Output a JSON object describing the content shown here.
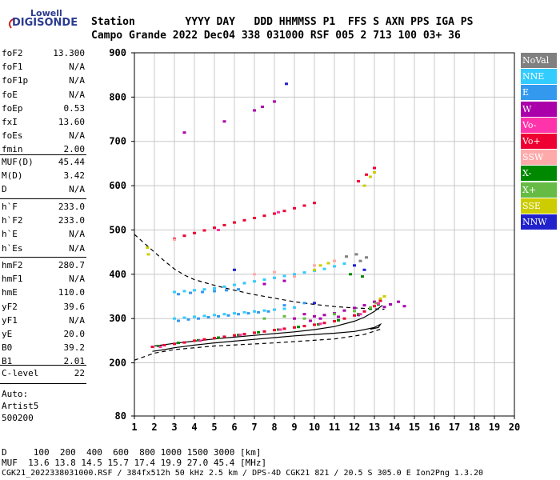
{
  "logo": {
    "line1": "Lowell",
    "line2": "DIGISONDE"
  },
  "header": {
    "row1": "Station        YYYY DAY   DDD HHMMSS P1  FFS S AXN PPS IGA PS",
    "row2": "Campo Grande 2022 Dec04 338 031000 RSF 005 2 713 100 03+ 36"
  },
  "params": {
    "group1": [
      {
        "label": "foF2",
        "value": "13.300"
      },
      {
        "label": "foF1",
        "value": "N/A"
      },
      {
        "label": "foF1p",
        "value": "N/A"
      },
      {
        "label": "foE",
        "value": "N/A"
      },
      {
        "label": "foEp",
        "value": "0.53"
      },
      {
        "label": "fxI",
        "value": "13.60"
      },
      {
        "label": "foEs",
        "value": "N/A"
      },
      {
        "label": "fmin",
        "value": "2.00"
      }
    ],
    "group2": [
      {
        "label": "MUF(D)",
        "value": "45.44"
      },
      {
        "label": "M(D)",
        "value": "3.42"
      },
      {
        "label": "D",
        "value": "N/A"
      }
    ],
    "group3": [
      {
        "label": "h`F",
        "value": "233.0"
      },
      {
        "label": "h`F2",
        "value": "233.0"
      },
      {
        "label": "h`E",
        "value": "N/A"
      },
      {
        "label": "h`Es",
        "value": "N/A"
      }
    ],
    "group4": [
      {
        "label": "hmF2",
        "value": "280.7"
      },
      {
        "label": "hmF1",
        "value": "N/A"
      },
      {
        "label": "hmE",
        "value": "110.0"
      },
      {
        "label": "yF2",
        "value": "39.6"
      },
      {
        "label": "yF1",
        "value": "N/A"
      },
      {
        "label": "yE",
        "value": "20.0"
      },
      {
        "label": "B0",
        "value": "39.2"
      },
      {
        "label": "B1",
        "value": "2.01"
      }
    ],
    "clevel": {
      "label": "C-level",
      "value": "22"
    },
    "auto": [
      "Auto:",
      "Artist5",
      "500200"
    ]
  },
  "legend": [
    {
      "label": "NoVal",
      "color": "#808080"
    },
    {
      "label": "NNE",
      "color": "#33ccff"
    },
    {
      "label": "E",
      "color": "#3399ee"
    },
    {
      "label": "W",
      "color": "#aa00aa"
    },
    {
      "label": "Vo-",
      "color": "#ff33aa"
    },
    {
      "label": "Vo+",
      "color": "#ee0033"
    },
    {
      "label": "SSW",
      "color": "#ffaaaa"
    },
    {
      "label": "X-",
      "color": "#008800"
    },
    {
      "label": "X+",
      "color": "#66bb44"
    },
    {
      "label": "SSE",
      "color": "#cccc00"
    },
    {
      "label": "NNW",
      "color": "#2222cc"
    }
  ],
  "footer": {
    "row1": "D     100  200  400  600  800 1000 1500 3000 [km]",
    "row2": "MUF  13.6 13.8 14.5 15.7 17.4 19.9 27.0 45.4 [MHz]",
    "row3": "CGK21_2022338031000.RSF / 384fx512h 50 kHz 2.5 km / DPS-4D CGK21 821 / 20.5 S 305.0 E Ion2Png 1.3.20"
  },
  "chart_data": {
    "type": "scatter",
    "title": "",
    "xlabel": "",
    "ylabel": "",
    "xlim": [
      1,
      20
    ],
    "ylim": [
      80,
      900
    ],
    "x_ticks": [
      "1",
      "2",
      "3",
      "4",
      "5",
      "6",
      "7",
      "8",
      "9",
      "10",
      "11",
      "12",
      "13",
      "14",
      "15",
      "16",
      "17",
      "18",
      "19",
      "20"
    ],
    "y_ticks": [
      {
        "value": 80,
        "label": "80"
      },
      {
        "value": 200,
        "label": "200"
      },
      {
        "value": 300,
        "label": "300"
      },
      {
        "value": 400,
        "label": "400"
      },
      {
        "value": 500,
        "label": "500"
      },
      {
        "value": 600,
        "label": "600"
      },
      {
        "value": 700,
        "label": "700"
      },
      {
        "value": 800,
        "label": "800"
      },
      {
        "value": 900,
        "label": "900"
      }
    ],
    "grid": true,
    "legend_position": "right",
    "series": [
      {
        "name": "Vo+",
        "color": "#ee0033",
        "points": [
          [
            1.9,
            236
          ],
          [
            2.5,
            240
          ],
          [
            3.0,
            243
          ],
          [
            3.5,
            246
          ],
          [
            4.0,
            250
          ],
          [
            4.5,
            253
          ],
          [
            5.0,
            256
          ],
          [
            5.5,
            259
          ],
          [
            6.0,
            262
          ],
          [
            6.5,
            265
          ],
          [
            7.0,
            268
          ],
          [
            7.5,
            271
          ],
          [
            8.0,
            274
          ],
          [
            8.5,
            277
          ],
          [
            9.0,
            280
          ],
          [
            9.5,
            283
          ],
          [
            10.0,
            286
          ],
          [
            10.5,
            290
          ],
          [
            11.0,
            294
          ],
          [
            11.5,
            300
          ],
          [
            12.0,
            307
          ],
          [
            12.5,
            316
          ],
          [
            13.0,
            328
          ],
          [
            13.3,
            340
          ],
          [
            3.0,
            480
          ],
          [
            3.5,
            487
          ],
          [
            4.0,
            493
          ],
          [
            4.5,
            499
          ],
          [
            5.0,
            505
          ],
          [
            5.5,
            511
          ],
          [
            6.0,
            517
          ],
          [
            6.5,
            522
          ],
          [
            7.0,
            527
          ],
          [
            7.5,
            532
          ],
          [
            8.0,
            537
          ],
          [
            8.5,
            543
          ],
          [
            9.0,
            549
          ],
          [
            9.5,
            555
          ],
          [
            10.0,
            561
          ],
          [
            12.2,
            610
          ],
          [
            12.6,
            625
          ],
          [
            13.0,
            640
          ]
        ]
      },
      {
        "name": "W",
        "color": "#aa00aa",
        "points": [
          [
            9.5,
            310
          ],
          [
            10.0,
            305
          ],
          [
            10.5,
            308
          ],
          [
            11.0,
            312
          ],
          [
            11.5,
            318
          ],
          [
            12.0,
            324
          ],
          [
            12.5,
            330
          ],
          [
            13.0,
            338
          ],
          [
            13.5,
            326
          ],
          [
            13.8,
            332
          ],
          [
            14.2,
            338
          ],
          [
            14.5,
            328
          ],
          [
            9.0,
            300
          ],
          [
            9.8,
            295
          ],
          [
            10.3,
            300
          ],
          [
            11.2,
            304
          ],
          [
            12.2,
            308
          ],
          [
            6.5,
            380
          ],
          [
            7.5,
            378
          ],
          [
            8.5,
            385
          ],
          [
            7.0,
            770
          ],
          [
            7.4,
            778
          ],
          [
            8.0,
            790
          ],
          [
            5.5,
            745
          ],
          [
            3.5,
            720
          ]
        ]
      },
      {
        "name": "NNE",
        "color": "#33ccff",
        "points": [
          [
            3.0,
            360
          ],
          [
            3.5,
            362
          ],
          [
            4.0,
            364
          ],
          [
            4.5,
            366
          ],
          [
            5.0,
            368
          ],
          [
            5.5,
            372
          ],
          [
            6.0,
            376
          ],
          [
            6.5,
            380
          ],
          [
            7.0,
            384
          ],
          [
            7.5,
            388
          ],
          [
            8.0,
            392
          ],
          [
            8.5,
            396
          ],
          [
            9.0,
            400
          ],
          [
            9.5,
            404
          ],
          [
            10.0,
            408
          ],
          [
            10.5,
            412
          ],
          [
            11.0,
            418
          ],
          [
            11.5,
            424
          ],
          [
            3.0,
            300
          ],
          [
            3.5,
            302
          ],
          [
            4.0,
            304
          ],
          [
            4.5,
            306
          ],
          [
            5.0,
            308
          ],
          [
            5.5,
            310
          ],
          [
            6.0,
            312
          ],
          [
            6.5,
            314
          ],
          [
            7.0,
            316
          ],
          [
            7.5,
            318
          ],
          [
            8.0,
            320
          ],
          [
            8.5,
            322
          ],
          [
            9.0,
            325
          ]
        ]
      },
      {
        "name": "E",
        "color": "#3399ee",
        "points": [
          [
            3.2,
            295
          ],
          [
            3.7,
            298
          ],
          [
            4.2,
            300
          ],
          [
            4.7,
            303
          ],
          [
            5.2,
            305
          ],
          [
            5.7,
            307
          ],
          [
            6.2,
            310
          ],
          [
            6.7,
            312
          ],
          [
            7.2,
            314
          ],
          [
            7.7,
            316
          ],
          [
            3.2,
            355
          ],
          [
            3.8,
            358
          ],
          [
            4.4,
            360
          ],
          [
            5.0,
            362
          ],
          [
            5.6,
            364
          ],
          [
            6.2,
            366
          ],
          [
            8.5,
            330
          ],
          [
            9.5,
            335
          ]
        ]
      },
      {
        "name": "X-",
        "color": "#008800",
        "points": [
          [
            2.2,
            238
          ],
          [
            3.2,
            245
          ],
          [
            4.2,
            251
          ],
          [
            5.2,
            257
          ],
          [
            6.2,
            263
          ],
          [
            7.2,
            269
          ],
          [
            8.2,
            275
          ],
          [
            9.2,
            281
          ],
          [
            10.2,
            287
          ],
          [
            11.2,
            296
          ],
          [
            12.2,
            310
          ],
          [
            12.8,
            322
          ],
          [
            13.2,
            332
          ],
          [
            11.8,
            400
          ],
          [
            12.4,
            395
          ]
        ]
      },
      {
        "name": "X+",
        "color": "#66bb44",
        "points": [
          [
            7.5,
            300
          ],
          [
            8.5,
            305
          ],
          [
            9.5,
            300
          ],
          [
            11.0,
            310
          ],
          [
            12.0,
            317
          ],
          [
            12.8,
            325
          ],
          [
            13.1,
            335
          ]
        ]
      },
      {
        "name": "SSE",
        "color": "#cccc00",
        "points": [
          [
            1.7,
            445
          ],
          [
            1.65,
            460
          ],
          [
            10.0,
            410
          ],
          [
            10.3,
            420
          ],
          [
            10.7,
            425
          ],
          [
            11.0,
            430
          ],
          [
            12.5,
            600
          ],
          [
            12.8,
            620
          ],
          [
            13.0,
            630
          ],
          [
            13.5,
            350
          ],
          [
            13.3,
            345
          ]
        ]
      },
      {
        "name": "SSW",
        "color": "#ffaaaa",
        "points": [
          [
            3.0,
            478
          ],
          [
            7.0,
            400
          ],
          [
            8.0,
            405
          ],
          [
            9.0,
            395
          ],
          [
            10.0,
            420
          ],
          [
            11.0,
            430
          ]
        ]
      },
      {
        "name": "Vo-",
        "color": "#ff33aa",
        "points": [
          [
            2.3,
            236
          ],
          [
            4.3,
            250
          ],
          [
            6.3,
            263
          ],
          [
            8.3,
            275
          ],
          [
            10.3,
            288
          ],
          [
            12.3,
            310
          ],
          [
            13.2,
            334
          ],
          [
            5.2,
            500
          ],
          [
            8.2,
            540
          ]
        ]
      },
      {
        "name": "NNW",
        "color": "#2222cc",
        "points": [
          [
            10.0,
            335
          ],
          [
            12.0,
            420
          ],
          [
            12.5,
            410
          ],
          [
            6.0,
            410
          ],
          [
            8.6,
            830
          ]
        ]
      },
      {
        "name": "NoVal",
        "color": "#808080",
        "points": [
          [
            12.3,
            430
          ],
          [
            12.6,
            438
          ],
          [
            11.6,
            440
          ],
          [
            12.1,
            445
          ]
        ]
      }
    ],
    "curves": [
      {
        "style": "dashed",
        "color": "#000000",
        "points": [
          [
            1.0,
            490
          ],
          [
            1.5,
            470
          ],
          [
            2.0,
            450
          ],
          [
            2.5,
            430
          ],
          [
            3.0,
            412
          ],
          [
            3.5,
            398
          ],
          [
            4.0,
            388
          ],
          [
            5.0,
            375
          ],
          [
            6.0,
            364
          ],
          [
            7.0,
            354
          ],
          [
            8.0,
            346
          ],
          [
            9.0,
            338
          ],
          [
            10.0,
            332
          ],
          [
            11.0,
            327
          ],
          [
            12.0,
            324
          ],
          [
            13.0,
            322
          ],
          [
            13.5,
            321
          ]
        ]
      },
      {
        "style": "dashed",
        "color": "#000000",
        "points": [
          [
            1.0,
            206
          ],
          [
            1.5,
            214
          ],
          [
            2.0,
            222
          ],
          [
            3.0,
            230
          ],
          [
            5.0,
            238
          ],
          [
            8.0,
            245
          ],
          [
            11.0,
            254
          ],
          [
            12.5,
            264
          ],
          [
            13.3,
            276
          ]
        ]
      },
      {
        "style": "solid",
        "color": "#000000",
        "points": [
          [
            1.9,
            226
          ],
          [
            2.5,
            230
          ],
          [
            3.0,
            234
          ],
          [
            4.0,
            240
          ],
          [
            5.0,
            245
          ],
          [
            6.0,
            249
          ],
          [
            7.0,
            253
          ],
          [
            8.0,
            257
          ],
          [
            9.0,
            261
          ],
          [
            10.0,
            264
          ],
          [
            11.0,
            267
          ],
          [
            12.0,
            271
          ],
          [
            12.5,
            275
          ],
          [
            13.0,
            280
          ],
          [
            13.3,
            287
          ],
          [
            13.2,
            280
          ],
          [
            12.8,
            276
          ]
        ]
      },
      {
        "style": "solid",
        "color": "#000000",
        "points": [
          [
            2.0,
            238
          ],
          [
            3.0,
            244
          ],
          [
            4.0,
            249
          ],
          [
            5.0,
            254
          ],
          [
            6.0,
            258
          ],
          [
            7.0,
            262
          ],
          [
            8.0,
            266
          ],
          [
            9.0,
            270
          ],
          [
            10.0,
            275
          ],
          [
            11.0,
            282
          ],
          [
            12.0,
            294
          ],
          [
            12.5,
            303
          ],
          [
            13.0,
            316
          ],
          [
            13.4,
            330
          ]
        ]
      }
    ]
  }
}
